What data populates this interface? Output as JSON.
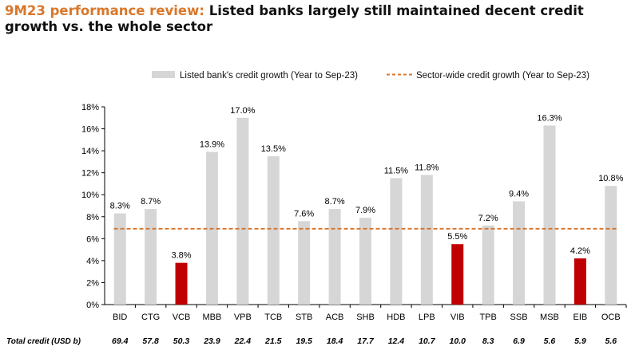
{
  "title": {
    "lead": "9M23 performance review:",
    "rest": " Listed banks largely still maintained decent credit growth vs. the whole sector"
  },
  "chart_data": {
    "type": "bar",
    "categories": [
      "BID",
      "CTG",
      "VCB",
      "MBB",
      "VPB",
      "TCB",
      "STB",
      "ACB",
      "SHB",
      "HDB",
      "LPB",
      "VIB",
      "TPB",
      "SSB",
      "MSB",
      "EIB",
      "OCB"
    ],
    "series": [
      {
        "name": "Listed bank's credit growth (Year to Sep-23)",
        "values": [
          8.3,
          8.7,
          3.8,
          13.9,
          17.0,
          13.5,
          7.6,
          8.7,
          7.9,
          11.5,
          11.8,
          5.5,
          7.2,
          9.4,
          16.3,
          4.2,
          10.8
        ],
        "labels": [
          "8.3%",
          "8.7%",
          "3.8%",
          "13.9%",
          "17.0%",
          "13.5%",
          "7.6%",
          "8.7%",
          "7.9%",
          "11.5%",
          "11.8%",
          "5.5%",
          "7.2%",
          "9.4%",
          "16.3%",
          "4.2%",
          "10.8%"
        ]
      }
    ],
    "highlighted": [
      "VCB",
      "VIB",
      "EIB"
    ],
    "reference_line": {
      "name": "Sector-wide credit growth (Year to Sep-23)",
      "value": 6.9
    },
    "ylim": [
      0,
      18
    ],
    "yticks": [
      0,
      2,
      4,
      6,
      8,
      10,
      12,
      14,
      16,
      18
    ],
    "ytick_labels": [
      "0%",
      "2%",
      "4%",
      "6%",
      "8%",
      "10%",
      "12%",
      "14%",
      "16%",
      "18%"
    ],
    "legend_position": "top",
    "total_credit": {
      "label": "Total credit (USD b)",
      "values": [
        "69.4",
        "57.8",
        "50.3",
        "23.9",
        "22.4",
        "21.5",
        "19.5",
        "18.4",
        "17.7",
        "12.4",
        "10.7",
        "10.0",
        "8.3",
        "6.9",
        "5.6",
        "5.9",
        "5.6"
      ]
    }
  },
  "colors": {
    "bar": "#d6d6d6",
    "highlight": "#c00000",
    "sector_line": "#d9772b",
    "title_accent": "#d9772b"
  }
}
